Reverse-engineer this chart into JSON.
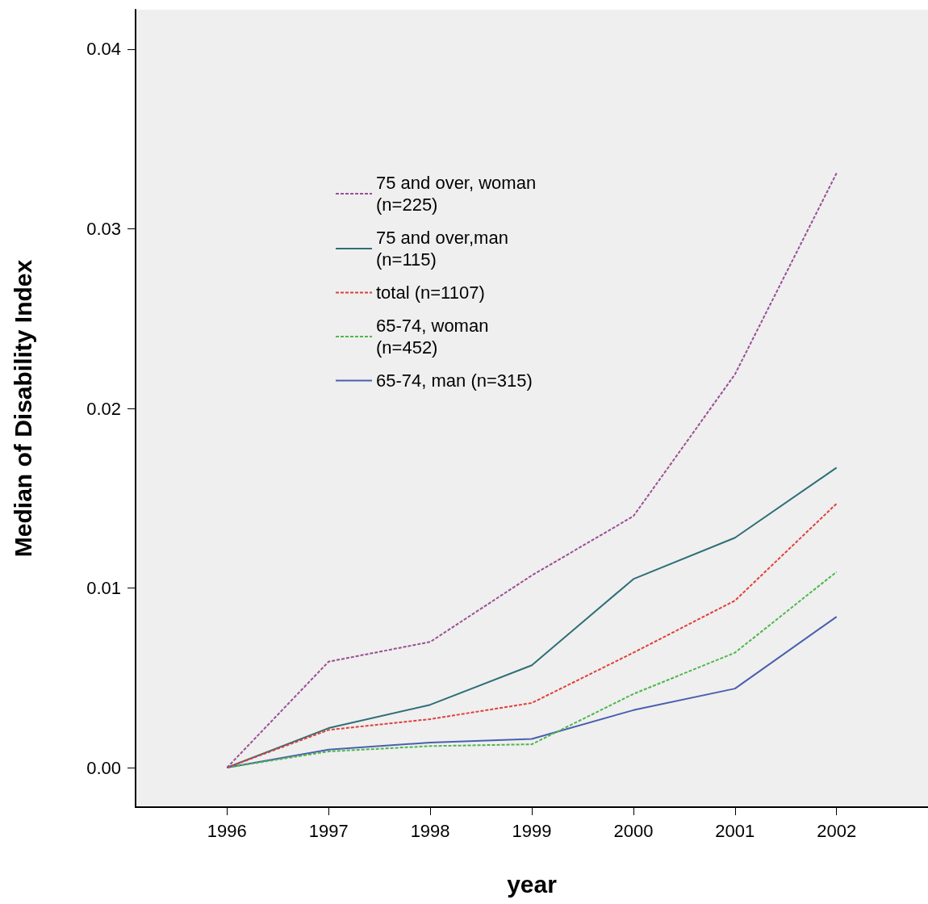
{
  "chart_data": {
    "type": "line",
    "xlabel": "year",
    "ylabel": "Median of Disability Index",
    "x": [
      1996,
      1997,
      1998,
      1999,
      2000,
      2001,
      2002
    ],
    "series": [
      {
        "name": "75 and over, woman\n(n=225)",
        "color": "#9a4f94",
        "line_style": "dashed",
        "values": [
          0,
          0.0059,
          0.007,
          0.0107,
          0.014,
          0.0219,
          0.0331
        ]
      },
      {
        "name": "75 and over,man\n(n=115)",
        "color": "#2f6e78",
        "line_style": "solid",
        "values": [
          0,
          0.0022,
          0.0035,
          0.0057,
          0.0105,
          0.0128,
          0.0167
        ]
      },
      {
        "name": "total (n=1107)",
        "color": "#e0403a",
        "line_style": "dashed",
        "values": [
          0,
          0.0021,
          0.0027,
          0.0036,
          0.0064,
          0.0093,
          0.0147
        ]
      },
      {
        "name": "65-74, woman\n(n=452)",
        "color": "#4cb84c",
        "line_style": "dashed",
        "values": [
          0,
          0.0009,
          0.0012,
          0.0013,
          0.0041,
          0.0064,
          0.0109
        ]
      },
      {
        "name": "65-74, man (n=315)",
        "color": "#4a5fae",
        "line_style": "solid",
        "values": [
          0,
          0.001,
          0.0014,
          0.0016,
          0.0032,
          0.0044,
          0.0084
        ]
      }
    ],
    "xlim": [
      1995.1,
      2002.9
    ],
    "xticks": [
      1996,
      1997,
      1998,
      1999,
      2000,
      2001,
      2002
    ],
    "ylim": [
      -0.0022,
      0.0422
    ],
    "yticks": [
      {
        "value": 0,
        "label": "0.00"
      },
      {
        "value": 0.01,
        "label": "0.01"
      },
      {
        "value": 0.02,
        "label": "0.02"
      },
      {
        "value": 0.03,
        "label": "0.03"
      },
      {
        "value": 0.04,
        "label": "0.04"
      }
    ],
    "grid": false,
    "legend": "top left",
    "marker": "none"
  }
}
